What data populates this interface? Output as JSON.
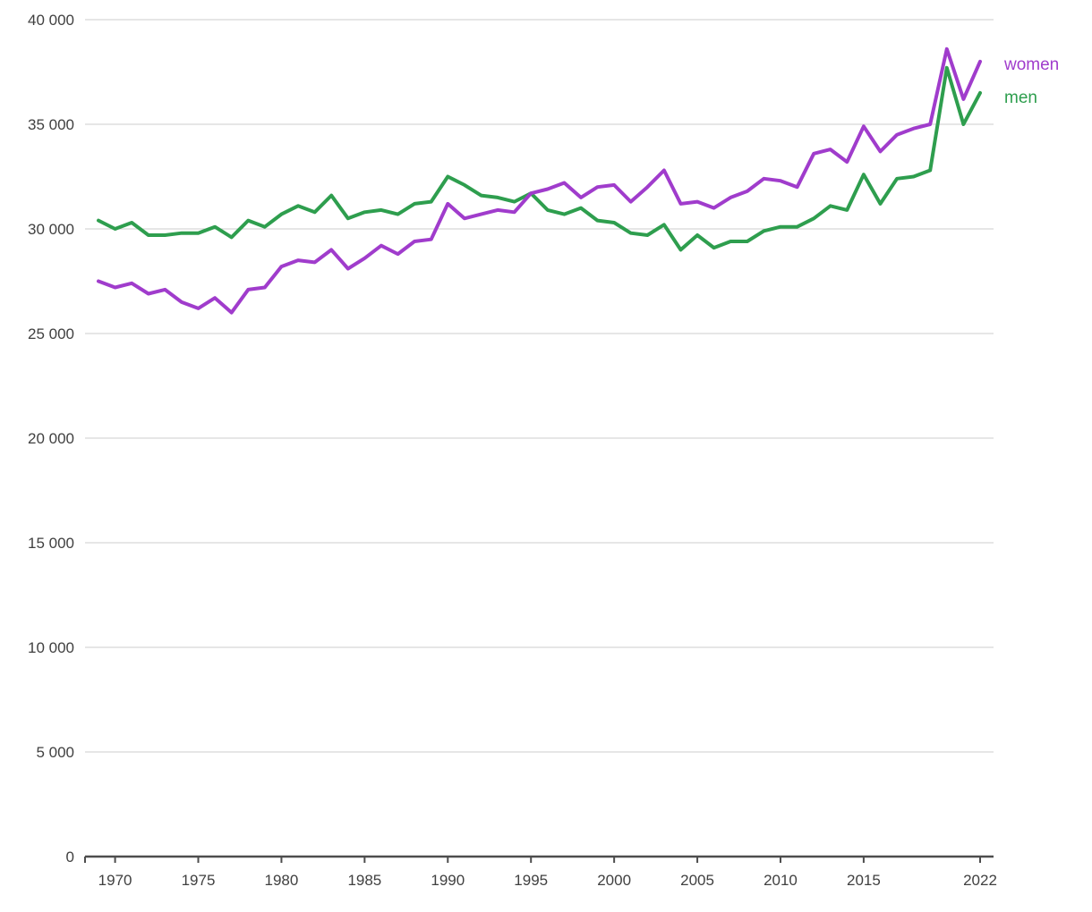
{
  "page": {
    "background": "#ffffff",
    "grid_color": "#cccccc",
    "axis_color": "#4d4d4d",
    "text_color": "#404040"
  },
  "legend": {
    "items": [
      {
        "label": "women",
        "color": "#a03ccc"
      },
      {
        "label": "men",
        "color": "#2e9e4e"
      }
    ]
  },
  "chart_data": {
    "type": "line",
    "title": "",
    "xlabel": "",
    "ylabel": "",
    "grid": true,
    "legend_position": "right",
    "ylim": [
      0,
      40000
    ],
    "ytick_step": 5000,
    "ytick_labels": [
      "0",
      "5 000",
      "10 000",
      "15 000",
      "20 000",
      "25 000",
      "30 000",
      "35 000",
      "40 000"
    ],
    "xticks": [
      1970,
      1975,
      1980,
      1985,
      1990,
      1995,
      2000,
      2005,
      2010,
      2015,
      2022
    ],
    "x": [
      1969,
      1970,
      1971,
      1972,
      1973,
      1974,
      1975,
      1976,
      1977,
      1978,
      1979,
      1980,
      1981,
      1982,
      1983,
      1984,
      1985,
      1986,
      1987,
      1988,
      1989,
      1990,
      1991,
      1992,
      1993,
      1994,
      1995,
      1996,
      1997,
      1998,
      1999,
      2000,
      2001,
      2002,
      2003,
      2004,
      2005,
      2006,
      2007,
      2008,
      2009,
      2010,
      2011,
      2012,
      2013,
      2014,
      2015,
      2016,
      2017,
      2018,
      2019,
      2020,
      2021,
      2022
    ],
    "series": [
      {
        "name": "women",
        "color": "#a03ccc",
        "values": [
          27500,
          27200,
          27400,
          26900,
          27100,
          26500,
          26200,
          26700,
          26000,
          27100,
          27200,
          28200,
          28500,
          28400,
          29000,
          28100,
          28600,
          29200,
          28800,
          29400,
          29500,
          31200,
          30500,
          30700,
          30900,
          30800,
          31700,
          31900,
          32200,
          31500,
          32000,
          32100,
          31300,
          32000,
          32800,
          31200,
          31300,
          31000,
          31500,
          31800,
          32400,
          32300,
          32000,
          33600,
          33800,
          33200,
          34900,
          33700,
          34500,
          34800,
          35000,
          38600,
          36200,
          38000
        ]
      },
      {
        "name": "men",
        "color": "#2e9e4e",
        "values": [
          30400,
          30000,
          30300,
          29700,
          29700,
          29800,
          29800,
          30100,
          29600,
          30400,
          30100,
          30700,
          31100,
          30800,
          31600,
          30500,
          30800,
          30900,
          30700,
          31200,
          31300,
          32500,
          32100,
          31600,
          31500,
          31300,
          31700,
          30900,
          30700,
          31000,
          30400,
          30300,
          29800,
          29700,
          30200,
          29000,
          29700,
          29100,
          29400,
          29400,
          29900,
          30100,
          30100,
          30500,
          31100,
          30900,
          32600,
          31200,
          32400,
          32500,
          32800,
          37700,
          35000,
          36500
        ]
      }
    ]
  }
}
